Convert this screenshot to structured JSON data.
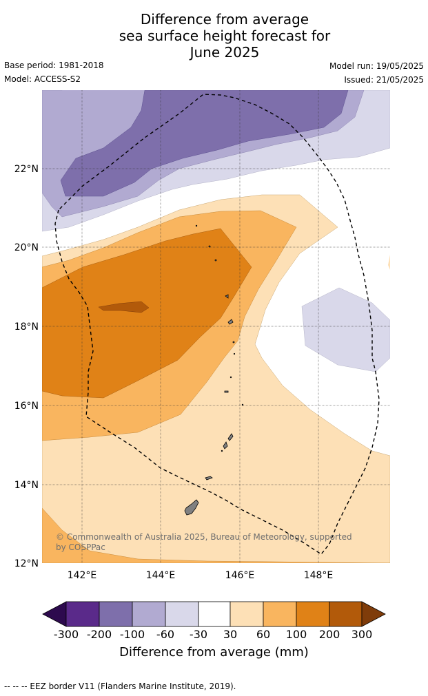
{
  "title": {
    "line1": "Difference from average",
    "line2": "sea surface height forecast for",
    "line3": "June 2025"
  },
  "meta": {
    "base_period": "Base period: 1981-2018",
    "model": "Model: ACCESS-S2",
    "model_run": "Model run: 19/05/2025",
    "issued": "Issued: 21/05/2025"
  },
  "map": {
    "lat_labels": [
      "22°N",
      "20°N",
      "18°N",
      "16°N",
      "14°N",
      "12°N"
    ],
    "lon_labels": [
      "142°E",
      "144°E",
      "146°E",
      "148°E"
    ],
    "copyright_line1": "© Commonwealth of Australia 2025, Bureau of Meteorology, supported",
    "copyright_line2": "by COSPPac"
  },
  "colorbar": {
    "ticks": [
      "-300",
      "-200",
      "-100",
      "-60",
      "-30",
      "30",
      "60",
      "100",
      "200",
      "300"
    ],
    "title": "Difference from average (mm)",
    "colors": [
      "#2d0a4e",
      "#5a2a8a",
      "#7e6fab",
      "#b1aad1",
      "#d9d8ea",
      "#ffffff",
      "#fde0b6",
      "#f9b55f",
      "#e08217",
      "#b25a0a",
      "#7f3c0a"
    ]
  },
  "footer": "--  --  -- EEZ border V11 (Flanders Marine Institute, 2019)."
}
